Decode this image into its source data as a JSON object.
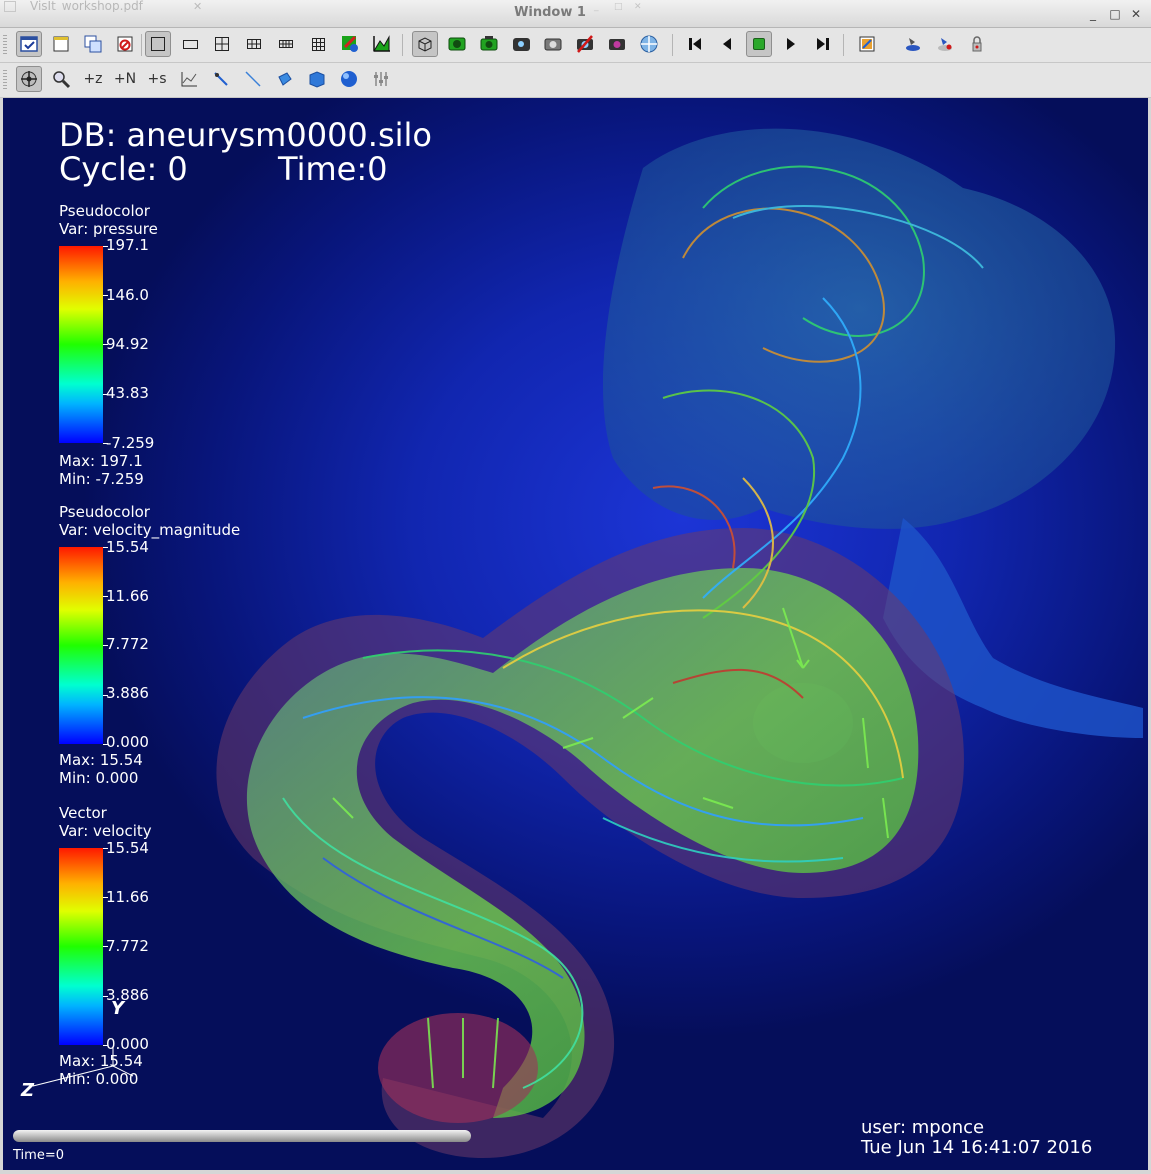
{
  "window": {
    "ghost_tab_title": "VisIt_workshop.pdf",
    "title": "Window 1",
    "controls": {
      "minimize": "_",
      "maximize": "□",
      "close": "✕"
    }
  },
  "toolbar1": {
    "buttons": [
      {
        "name": "active-window-check-icon",
        "active": true
      },
      {
        "name": "new-window-icon"
      },
      {
        "name": "clone-window-icon"
      },
      {
        "name": "delete-window-icon"
      },
      {
        "name": "layout-1x1-icon",
        "active": true
      },
      {
        "name": "layout-1x2-icon"
      },
      {
        "name": "layout-2x2-icon"
      },
      {
        "name": "layout-2x3-icon"
      },
      {
        "name": "layout-2x4-icon"
      },
      {
        "name": "layout-3x3-icon"
      },
      {
        "name": "invert-background-icon"
      },
      {
        "name": "set-mode-icon"
      },
      {
        "name": "lock-view-icon",
        "active": true
      },
      {
        "name": "lock-time-icon"
      },
      {
        "name": "lock-tools-icon"
      },
      {
        "name": "save-view-icon"
      },
      {
        "name": "choose-view-icon"
      },
      {
        "name": "clear-views-icon"
      },
      {
        "name": "reset-view-icon"
      },
      {
        "name": "recenter-view-icon"
      },
      {
        "name": "skip-to-first-icon"
      },
      {
        "name": "reverse-step-icon"
      },
      {
        "name": "stop-icon",
        "active": true
      },
      {
        "name": "play-icon"
      },
      {
        "name": "forward-step-icon"
      },
      {
        "name": "undo-view-icon"
      },
      {
        "name": "spin-icon"
      },
      {
        "name": "copy-attributes-icon"
      },
      {
        "name": "lock-plots-icon"
      }
    ]
  },
  "toolbar2": {
    "buttons": [
      {
        "name": "navigate-mode-icon",
        "active": true
      },
      {
        "name": "zoom-mode-icon"
      },
      {
        "name": "zone-pick-icon",
        "label": "+z"
      },
      {
        "name": "node-pick-icon",
        "label": "+N"
      },
      {
        "name": "spreadsheet-pick-icon",
        "label": "+s"
      },
      {
        "name": "curve-pick-icon"
      },
      {
        "name": "lineout-icon"
      },
      {
        "name": "line-tool-icon"
      },
      {
        "name": "plane-tool-icon"
      },
      {
        "name": "box-tool-icon"
      },
      {
        "name": "sphere-tool-icon"
      },
      {
        "name": "point-tool-icon"
      }
    ]
  },
  "viewport": {
    "db_label": "DB: aneurysm0000.silo",
    "cycle_label": "Cycle: 0",
    "time_label": "Time:0",
    "user_label": "user: mponce",
    "date_label": "Tue Jun 14 16:41:07 2016",
    "time_slider_label": "Time=0",
    "time_slider_progress": 0,
    "axis_labels": {
      "y": "Y",
      "z": "Z"
    },
    "background_color": "#1126b0"
  },
  "legends": [
    {
      "plot": "Pseudocolor",
      "var": "Var: pressure",
      "ticks": [
        "197.1",
        "146.0",
        "94.92",
        "43.83",
        "-7.259"
      ],
      "max": "Max:  197.1",
      "min": "Min: -7.259"
    },
    {
      "plot": "Pseudocolor",
      "var": "Var: velocity_magnitude",
      "ticks": [
        "15.54",
        "11.66",
        "7.772",
        "3.886",
        "0.000"
      ],
      "max": "Max:  15.54",
      "min": "Min:  0.000"
    },
    {
      "plot": "Vector",
      "var": "Var: velocity",
      "ticks": [
        "15.54",
        "11.66",
        "7.772",
        "3.886",
        "0.000"
      ],
      "max": "Max:  15.54",
      "min": "Min:  0.000"
    }
  ]
}
